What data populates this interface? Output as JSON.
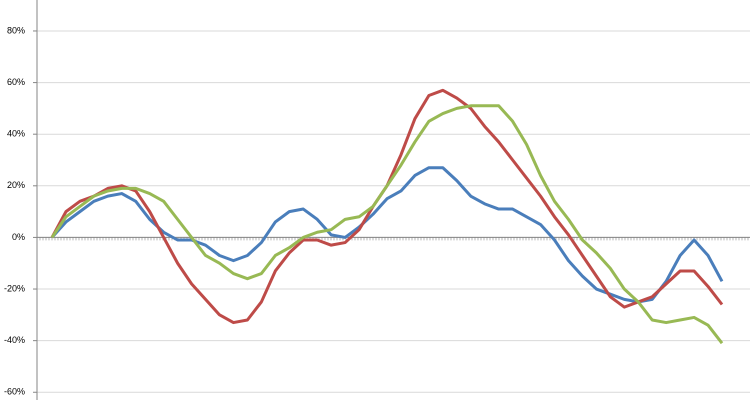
{
  "chart_data": {
    "type": "line",
    "categories": [
      null,
      null,
      null,
      null,
      null,
      null,
      null,
      null,
      null,
      null,
      null,
      null,
      null,
      null,
      null,
      null,
      null,
      null,
      null,
      null,
      null,
      null,
      null,
      null,
      null,
      null,
      null,
      null,
      null,
      null,
      null,
      null,
      null,
      null,
      null,
      null,
      null,
      null,
      null,
      null,
      null,
      null,
      null,
      null,
      null,
      null,
      null,
      null,
      null
    ],
    "series": [
      {
        "color": "#4a7ebb",
        "values": [
          0,
          6,
          10,
          14,
          16,
          17,
          14,
          7,
          2,
          -1,
          -1,
          -3,
          -7,
          -9,
          -7,
          -2,
          6,
          10,
          11,
          7,
          1,
          0,
          4,
          9,
          15,
          18,
          24,
          27,
          27,
          22,
          16,
          13,
          11,
          11,
          8,
          5,
          -1,
          -9,
          -15,
          -20,
          -22,
          -24,
          -25,
          -24,
          -17,
          -7,
          -1,
          -7,
          -17
        ]
      },
      {
        "color": "#be4b48",
        "values": [
          0,
          10,
          14,
          16,
          19,
          20,
          18,
          10,
          0,
          -10,
          -18,
          -24,
          -30,
          -33,
          -32,
          -25,
          -13,
          -6,
          -1,
          -1,
          -3,
          -2,
          3,
          12,
          20,
          32,
          46,
          55,
          57,
          54,
          50,
          43,
          37,
          30,
          23,
          16,
          8,
          1,
          -7,
          -15,
          -23,
          -27,
          -25,
          -23,
          -18,
          -13,
          -13,
          -19,
          -26
        ]
      },
      {
        "color": "#98b954",
        "values": [
          0,
          8,
          12,
          16,
          18,
          19,
          19,
          17,
          14,
          7,
          0,
          -7,
          -10,
          -14,
          -16,
          -14,
          -7,
          -4,
          0,
          2,
          3,
          7,
          8,
          12,
          20,
          28,
          37,
          45,
          48,
          50,
          51,
          51,
          51,
          45,
          36,
          24,
          14,
          7,
          -1,
          -6,
          -12,
          -20,
          -25,
          -32,
          -33,
          -32,
          -31,
          -34,
          -41
        ]
      }
    ],
    "ylim": [
      -63,
      92
    ],
    "yticks": [
      {
        "value": -60,
        "label": "-60%"
      },
      {
        "value": -40,
        "label": "-40%"
      },
      {
        "value": -20,
        "label": "-20%"
      },
      {
        "value": 0,
        "label": "0%"
      },
      {
        "value": 20,
        "label": "20%"
      },
      {
        "value": 40,
        "label": "40%"
      },
      {
        "value": 60,
        "label": "60%"
      },
      {
        "value": 80,
        "label": "80%"
      }
    ],
    "grid": true
  }
}
